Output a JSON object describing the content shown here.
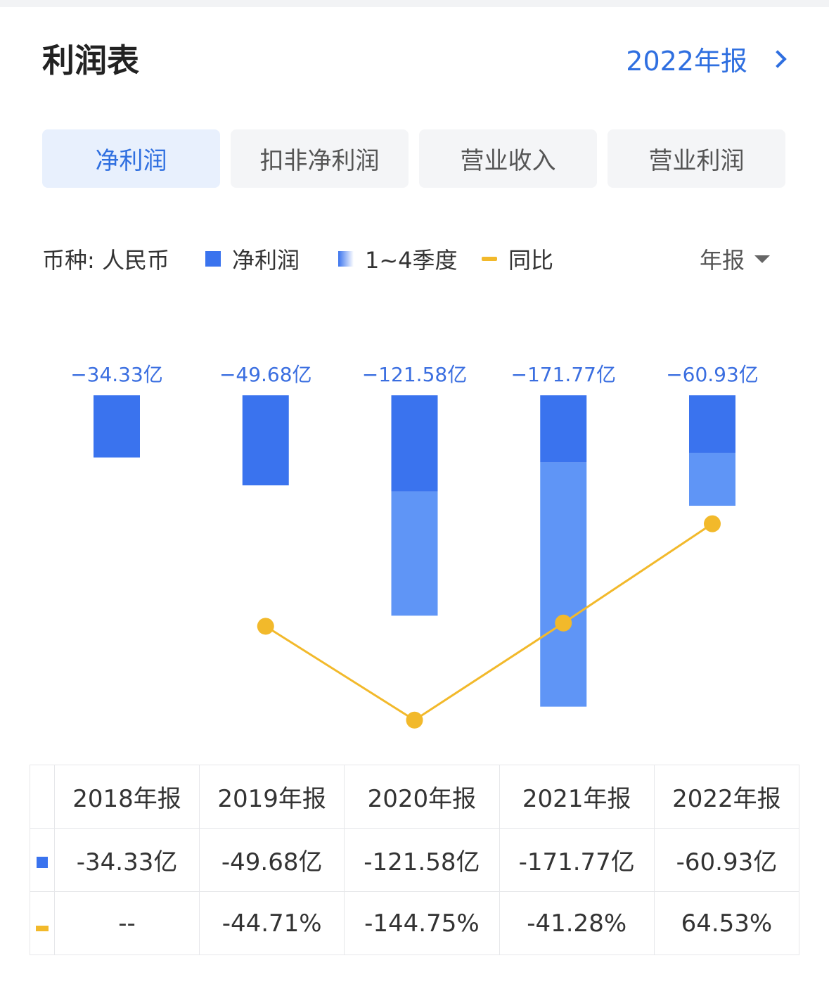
{
  "header": {
    "title": "利润表",
    "report_link": "2022年报"
  },
  "tabs": [
    {
      "label": "净利润",
      "active": true
    },
    {
      "label": "扣非净利润",
      "active": false
    },
    {
      "label": "营业收入",
      "active": false
    },
    {
      "label": "营业利润",
      "active": false
    }
  ],
  "legend": {
    "currency": "币种: 人民币",
    "net_profit": "净利润",
    "quarters": "1~4季度",
    "yoy": "同比",
    "period": "年报"
  },
  "colors": {
    "accent": "#2f6fe0",
    "bar_dark": "#3a73ee",
    "bar_light": "#5f95f6",
    "line": "#f2b92b"
  },
  "chart_data": {
    "type": "bar",
    "categories": [
      "2018年报",
      "2019年报",
      "2020年报",
      "2021年报",
      "2022年报"
    ],
    "series": [
      {
        "name": "净利润",
        "values": [
          -34.33,
          -49.68,
          -121.58,
          -171.77,
          -60.93
        ],
        "labels": [
          "-34.33亿",
          "-49.68亿",
          "-121.58亿",
          "-171.77亿",
          "-60.93亿"
        ]
      }
    ],
    "yoy": {
      "name": "同比",
      "values": [
        null,
        -44.71,
        -144.75,
        -41.28,
        64.53
      ],
      "labels": [
        "--",
        "-44.71%",
        "-144.75%",
        "-41.28%",
        "64.53%"
      ]
    },
    "bar_split": [
      null,
      null,
      -53.0,
      -37.0,
      -31.8
    ]
  }
}
